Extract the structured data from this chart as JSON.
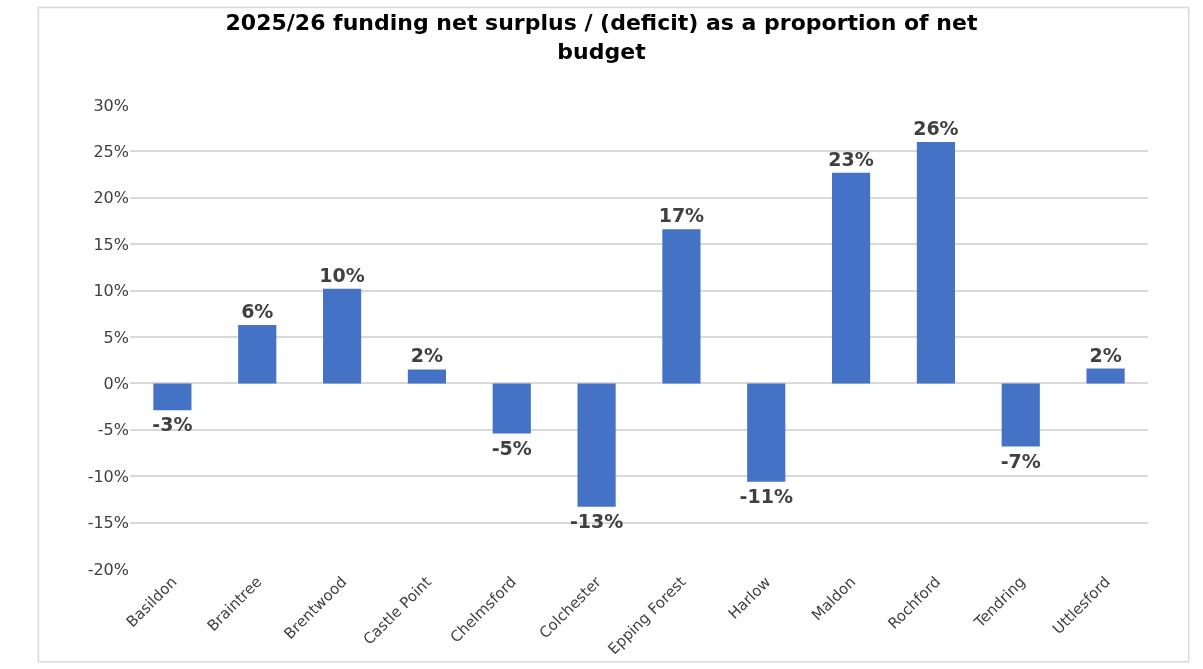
{
  "chart_data": {
    "type": "bar",
    "title": "2025/26 funding net surplus / (deficit) as a proportion of net budget",
    "categories": [
      "Basildon",
      "Braintree",
      "Brentwood",
      "Castle Point",
      "Chelmsford",
      "Colchester",
      "Epping Forest",
      "Harlow",
      "Maldon",
      "Rochford",
      "Tendring",
      "Uttlesford"
    ],
    "values": [
      -2.9,
      6.3,
      10.2,
      1.5,
      -5.4,
      -13.3,
      16.6,
      -10.6,
      22.7,
      26.0,
      -6.8,
      1.6
    ],
    "value_labels": [
      "-3%",
      "6%",
      "10%",
      "2%",
      "-5%",
      "-13%",
      "17%",
      "-11%",
      "23%",
      "26%",
      "-7%",
      "2%"
    ],
    "color": "#4472c4",
    "ylim": [
      -20,
      30
    ],
    "yticks": [
      {
        "value": -20,
        "label": "-20%"
      },
      {
        "value": -15,
        "label": "-15%"
      },
      {
        "value": -10,
        "label": "-10%"
      },
      {
        "value": -5,
        "label": "-5%"
      },
      {
        "value": 0,
        "label": "0%"
      },
      {
        "value": 5,
        "label": "5%"
      },
      {
        "value": 10,
        "label": "10%"
      },
      {
        "value": 15,
        "label": "15%"
      },
      {
        "value": 20,
        "label": "20%"
      },
      {
        "value": 25,
        "label": "25%"
      },
      {
        "value": 30,
        "label": "30%"
      }
    ],
    "grid": "y"
  }
}
